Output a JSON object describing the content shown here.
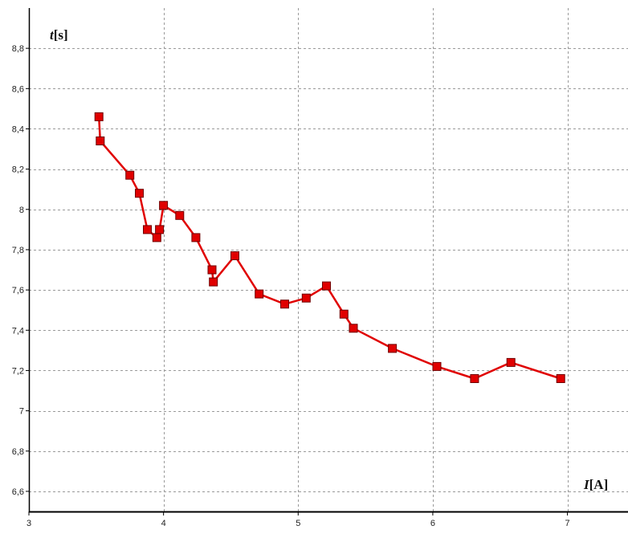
{
  "chart_data": {
    "type": "line",
    "title": "",
    "xlabel": {
      "var": "I",
      "unit": "[A]"
    },
    "ylabel": {
      "var": "t",
      "unit": "[s]"
    },
    "xlim": [
      3,
      7.45
    ],
    "ylim": [
      6.5,
      9.0
    ],
    "x_ticks": [
      3,
      4,
      5,
      6,
      7
    ],
    "x_tick_labels": [
      "3",
      "4",
      "5",
      "6",
      "7"
    ],
    "y_ticks": [
      6.6,
      6.8,
      7.0,
      7.2,
      7.4,
      7.6,
      7.8,
      8.0,
      8.2,
      8.4,
      8.6,
      8.8
    ],
    "y_tick_labels": [
      "6,6",
      "6,8",
      "7",
      "7,2",
      "7,4",
      "7,6",
      "7,8",
      "8",
      "8,2",
      "8,4",
      "8,6",
      "8,8"
    ],
    "grid": true,
    "grid_style": "dashed",
    "series_color": "#e00000",
    "marker": "square",
    "series": [
      {
        "x": [
          3.52,
          3.53,
          3.75,
          3.82,
          3.88,
          3.95,
          3.97,
          4.0,
          4.12,
          4.24,
          4.36,
          4.37,
          4.53,
          4.71,
          4.9,
          5.06,
          5.21,
          5.34,
          5.41,
          5.7,
          6.03,
          6.31,
          6.58,
          6.95
        ],
        "y": [
          8.46,
          8.34,
          8.17,
          8.08,
          7.9,
          7.86,
          7.9,
          8.02,
          7.97,
          7.86,
          7.7,
          7.64,
          7.77,
          7.58,
          7.53,
          7.56,
          7.62,
          7.48,
          7.41,
          7.31,
          7.22,
          7.16,
          7.24,
          7.16
        ]
      }
    ]
  }
}
